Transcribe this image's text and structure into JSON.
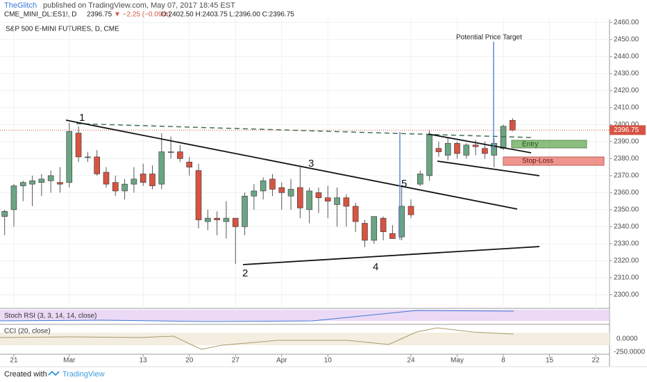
{
  "header": {
    "author": "TheGlitch",
    "published": "published on TradingView.com, May 07, 2017 18:45 EST",
    "symbol": "CME_MINI_DL:ES1!, D",
    "last": "2396.75",
    "change": "▼ −2.25 (−0.09%)",
    "ohlc": "O:2402.50 H:2403.75 L:2396.00 C:2396.75"
  },
  "chart_data": {
    "type": "candlestick",
    "title": "S&P 500 E-MINI FUTURES, D, CME",
    "up_color": "#6ba583",
    "down_color": "#d75442",
    "grid": true,
    "open": [
      2346,
      2350,
      2364,
      2365,
      2366,
      2367,
      2366,
      2366,
      2395,
      2381,
      2381,
      2372,
      2366,
      2361,
      2365,
      2371,
      2371,
      2365,
      2384,
      2384,
      2378,
      2373,
      2343,
      2345,
      2343,
      2345,
      2340,
      2358,
      2361,
      2368,
      2363,
      2358,
      2363,
      2350,
      2360,
      2357,
      2353,
      2357,
      2352,
      2342,
      2332,
      2345,
      2336,
      2334,
      2352,
      2365,
      2370,
      2386,
      2382,
      2389,
      2382,
      2388,
      2386,
      2382,
      2386,
      2402.5
    ],
    "high": [
      2350,
      2365,
      2367,
      2370,
      2371,
      2373,
      2375,
      2401,
      2399,
      2384,
      2385,
      2375,
      2370,
      2368,
      2375,
      2377,
      2376,
      2395,
      2393,
      2388,
      2381,
      2377,
      2350,
      2349,
      2355,
      2345,
      2360,
      2365,
      2369,
      2371,
      2366,
      2368,
      2375,
      2363,
      2363,
      2364,
      2363,
      2359,
      2354,
      2344,
      2346,
      2346,
      2341,
      2364,
      2356,
      2373,
      2397,
      2390,
      2392,
      2390,
      2389,
      2391,
      2390,
      2392,
      2400,
      2403.75
    ],
    "low": [
      2335,
      2340,
      2355,
      2352,
      2358,
      2360,
      2360,
      2363,
      2378,
      2378,
      2370,
      2363,
      2358,
      2356,
      2360,
      2364,
      2362,
      2362,
      2380,
      2378,
      2370,
      2339,
      2338,
      2335,
      2333,
      2318,
      2335,
      2350,
      2356,
      2358,
      2350,
      2350,
      2345,
      2342,
      2348,
      2345,
      2340,
      2340,
      2337,
      2328,
      2330,
      2332,
      2333,
      2332,
      2345,
      2364,
      2367,
      2381,
      2379,
      2380,
      2380,
      2382,
      2380,
      2375,
      2385,
      2396
    ],
    "close": [
      2349,
      2364,
      2366,
      2367,
      2368,
      2370,
      2365,
      2396,
      2381,
      2381,
      2371,
      2365,
      2361,
      2365,
      2368,
      2366,
      2364,
      2384,
      2384,
      2380,
      2375,
      2344,
      2345,
      2344,
      2345,
      2340,
      2358,
      2361,
      2367,
      2362,
      2360,
      2362,
      2351,
      2361,
      2357,
      2355,
      2357,
      2352,
      2343,
      2332,
      2346,
      2337,
      2333,
      2352,
      2347,
      2371,
      2394,
      2384,
      2389,
      2383,
      2388,
      2387,
      2383,
      2389,
      2399,
      2396.75
    ],
    "last_price": 2396.75,
    "xlim": [
      -0.5,
      65.5
    ],
    "xticks": [
      {
        "value": 1,
        "label": "21"
      },
      {
        "value": 7,
        "label": "Mar"
      },
      {
        "value": 15,
        "label": "13"
      },
      {
        "value": 20,
        "label": "20"
      },
      {
        "value": 25,
        "label": "27"
      },
      {
        "value": 30,
        "label": "Apr"
      },
      {
        "value": 35,
        "label": "10"
      },
      {
        "value": 44,
        "label": "24"
      },
      {
        "value": 49,
        "label": "May"
      },
      {
        "value": 54,
        "label": "8"
      },
      {
        "value": 59,
        "label": "15"
      },
      {
        "value": 64,
        "label": "22"
      }
    ],
    "ylim": [
      2292,
      2463
    ],
    "yticks": [
      {
        "value": 2300,
        "label": "2300.00"
      },
      {
        "value": 2310,
        "label": "2310.00"
      },
      {
        "value": 2320,
        "label": "2320.00"
      },
      {
        "value": 2330,
        "label": "2330.00"
      },
      {
        "value": 2340,
        "label": "2340.00"
      },
      {
        "value": 2350,
        "label": "2350.00"
      },
      {
        "value": 2360,
        "label": "2360.00"
      },
      {
        "value": 2370,
        "label": "2370.00"
      },
      {
        "value": 2380,
        "label": "2380.00"
      },
      {
        "value": 2390,
        "label": "2390.00"
      },
      {
        "value": 2400,
        "label": "2400.00"
      },
      {
        "value": 2410,
        "label": "2410.00"
      },
      {
        "value": 2420,
        "label": "2420.00"
      },
      {
        "value": 2430,
        "label": "2430.00"
      },
      {
        "value": 2440,
        "label": "2440.00"
      },
      {
        "value": 2450,
        "label": "2450.00"
      },
      {
        "value": 2460,
        "label": "2460.00"
      }
    ],
    "annotations": [
      "1",
      "2",
      "3",
      "4",
      "5",
      "Potential Price Target",
      "Entry",
      "Stop-Loss"
    ]
  },
  "indicators": [
    {
      "name": "Stoch RSI (3, 3, 14, 14, close)"
    },
    {
      "name": "CCI (20, close)",
      "ticks": [
        "0.0000",
        "-250.0000"
      ]
    }
  ],
  "footer": {
    "created": "Created with",
    "brand": "TradingView"
  }
}
